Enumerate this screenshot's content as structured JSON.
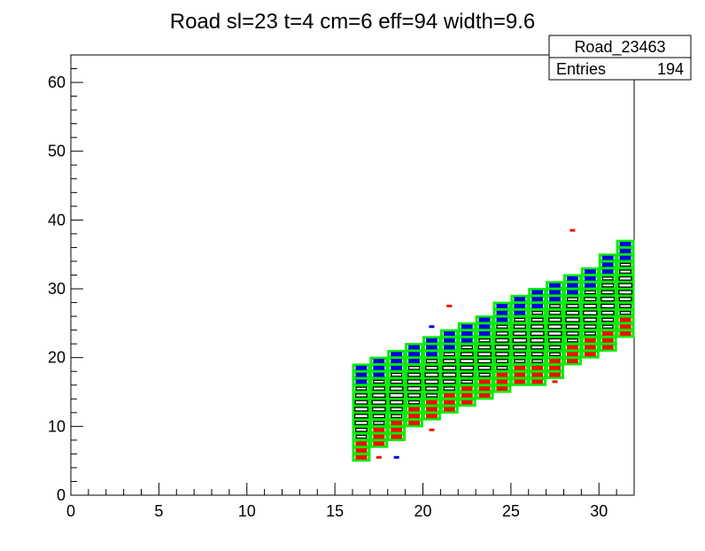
{
  "chart_data": {
    "type": "heatmap",
    "title": "Road sl=23 t=4 cm=6 eff=94 width=9.6",
    "xlabel": "",
    "ylabel": "",
    "xlim": [
      0,
      32
    ],
    "ylim": [
      0,
      64
    ],
    "x_ticks": [
      "0",
      "5",
      "10",
      "15",
      "20",
      "25",
      "30"
    ],
    "y_ticks": [
      "0",
      "10",
      "20",
      "30",
      "40",
      "50",
      "60"
    ],
    "grid": false,
    "stats_box": {
      "name": "Road_23463",
      "entries_label": "Entries",
      "entries_value": "194"
    },
    "colors": {
      "road_outline": "#00ee00",
      "upper_hits": "#0000dd",
      "lower_hits": "#ee1100",
      "middle_hits": "#000000"
    },
    "road_columns": [
      {
        "x": 16,
        "ymin": 5,
        "ymax": 18
      },
      {
        "x": 17,
        "ymin": 7,
        "ymax": 19
      },
      {
        "x": 18,
        "ymin": 8,
        "ymax": 20
      },
      {
        "x": 19,
        "ymin": 10,
        "ymax": 21
      },
      {
        "x": 20,
        "ymin": 11,
        "ymax": 22
      },
      {
        "x": 21,
        "ymin": 12,
        "ymax": 23
      },
      {
        "x": 22,
        "ymin": 13,
        "ymax": 24
      },
      {
        "x": 23,
        "ymin": 14,
        "ymax": 25
      },
      {
        "x": 24,
        "ymin": 15,
        "ymax": 27
      },
      {
        "x": 25,
        "ymin": 16,
        "ymax": 28
      },
      {
        "x": 26,
        "ymin": 16,
        "ymax": 29
      },
      {
        "x": 27,
        "ymin": 17,
        "ymax": 30
      },
      {
        "x": 28,
        "ymin": 19,
        "ymax": 31
      },
      {
        "x": 29,
        "ymin": 20,
        "ymax": 32
      },
      {
        "x": 30,
        "ymin": 21,
        "ymax": 34
      },
      {
        "x": 31,
        "ymin": 23,
        "ymax": 36
      }
    ],
    "outliers": [
      {
        "x": 17,
        "y": 5,
        "color": "lower"
      },
      {
        "x": 18,
        "y": 5,
        "color": "upper"
      },
      {
        "x": 19,
        "y": 20,
        "color": "upper"
      },
      {
        "x": 20,
        "y": 9,
        "color": "lower"
      },
      {
        "x": 20,
        "y": 24,
        "color": "upper"
      },
      {
        "x": 21,
        "y": 27,
        "color": "lower"
      },
      {
        "x": 27,
        "y": 16,
        "color": "lower"
      },
      {
        "x": 28,
        "y": 38,
        "color": "lower"
      }
    ]
  }
}
